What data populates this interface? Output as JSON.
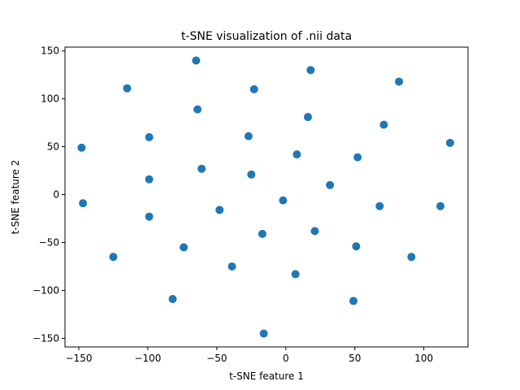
{
  "chart_data": {
    "type": "scatter",
    "title": "t-SNE visualization of .nii data",
    "xlabel": "t-SNE feature 1",
    "ylabel": "t-SNE feature 2",
    "xlim": [
      -160,
      132
    ],
    "ylim": [
      -159,
      154
    ],
    "xticks": [
      -150,
      -100,
      -50,
      0,
      50,
      100
    ],
    "yticks": [
      -150,
      -100,
      -50,
      0,
      50,
      100,
      150
    ],
    "grid": false,
    "marker_color": "#1f77b4",
    "points": [
      {
        "x": -65,
        "y": 140
      },
      {
        "x": 18,
        "y": 130
      },
      {
        "x": -115,
        "y": 111
      },
      {
        "x": 82,
        "y": 118
      },
      {
        "x": -23,
        "y": 110
      },
      {
        "x": -64,
        "y": 89
      },
      {
        "x": 16,
        "y": 81
      },
      {
        "x": 71,
        "y": 73
      },
      {
        "x": -99,
        "y": 60
      },
      {
        "x": -27,
        "y": 61
      },
      {
        "x": -148,
        "y": 49
      },
      {
        "x": 119,
        "y": 54
      },
      {
        "x": 8,
        "y": 42
      },
      {
        "x": 52,
        "y": 39
      },
      {
        "x": -61,
        "y": 27
      },
      {
        "x": -99,
        "y": 16
      },
      {
        "x": -25,
        "y": 21
      },
      {
        "x": 32,
        "y": 10
      },
      {
        "x": -147,
        "y": -9
      },
      {
        "x": -2,
        "y": -6
      },
      {
        "x": -99,
        "y": -23
      },
      {
        "x": -48,
        "y": -16
      },
      {
        "x": 68,
        "y": -12
      },
      {
        "x": 112,
        "y": -12
      },
      {
        "x": 21,
        "y": -38
      },
      {
        "x": -17,
        "y": -41
      },
      {
        "x": 51,
        "y": -54
      },
      {
        "x": -74,
        "y": -55
      },
      {
        "x": -125,
        "y": -65
      },
      {
        "x": 91,
        "y": -65
      },
      {
        "x": -39,
        "y": -75
      },
      {
        "x": 7,
        "y": -83
      },
      {
        "x": -82,
        "y": -109
      },
      {
        "x": 49,
        "y": -111
      },
      {
        "x": -16,
        "y": -145
      }
    ]
  }
}
